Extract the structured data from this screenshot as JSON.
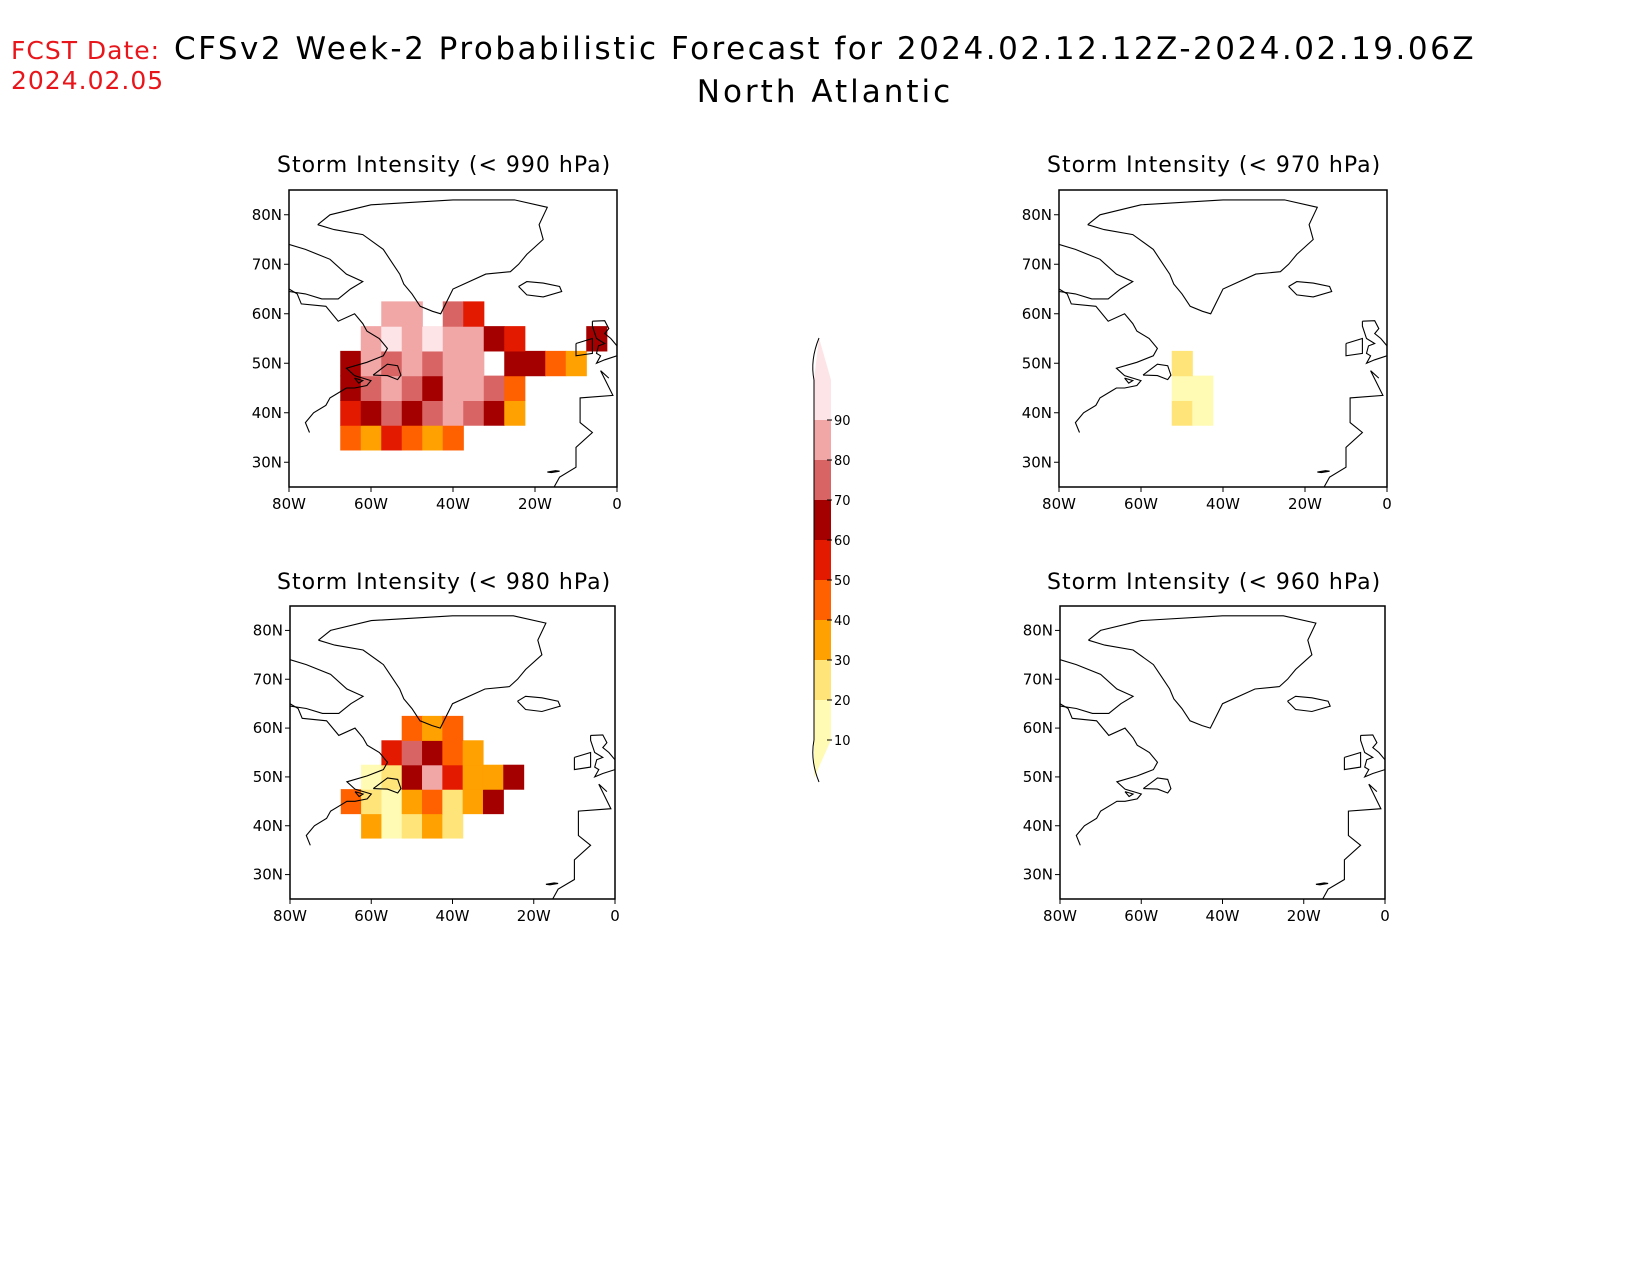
{
  "fcst_date": {
    "label": "FCST Date:",
    "value": "2024.02.05"
  },
  "title": {
    "line1": "CFSv2 Week-2 Probabilistic Forecast for 2024.02.12.12Z-2024.02.19.06Z",
    "line2": "North Atlantic"
  },
  "axes": {
    "lat_labels": [
      "80N",
      "70N",
      "60N",
      "50N",
      "40N",
      "30N"
    ],
    "lat_values": [
      80,
      70,
      60,
      50,
      40,
      30
    ],
    "lon_labels": [
      "80W",
      "60W",
      "40W",
      "20W",
      "0"
    ],
    "lon_values": [
      -80,
      -60,
      -40,
      -20,
      0
    ],
    "lat_range": [
      25,
      85
    ],
    "lon_range": [
      -80,
      0
    ]
  },
  "colorbar": {
    "levels": [
      "10",
      "20",
      "30",
      "40",
      "50",
      "60",
      "70",
      "80",
      "90"
    ],
    "colors": [
      "#fffab4",
      "#ffe47a",
      "#ffa100",
      "#ff6000",
      "#e41a00",
      "#a50000",
      "#d96464",
      "#f2a7a7",
      "#fde4e6"
    ]
  },
  "panels": [
    {
      "title": "Storm Intensity (< 990 hPa)",
      "cells": [
        {
          "lat": 35,
          "lon": -65,
          "level": 4
        },
        {
          "lat": 35,
          "lon": -60,
          "level": 3
        },
        {
          "lat": 35,
          "lon": -55,
          "level": 5
        },
        {
          "lat": 35,
          "lon": -50,
          "level": 4
        },
        {
          "lat": 35,
          "lon": -45,
          "level": 3
        },
        {
          "lat": 35,
          "lon": -40,
          "level": 4
        },
        {
          "lat": 40,
          "lon": -65,
          "level": 5
        },
        {
          "lat": 40,
          "lon": -60,
          "level": 6
        },
        {
          "lat": 40,
          "lon": -55,
          "level": 7
        },
        {
          "lat": 40,
          "lon": -50,
          "level": 6
        },
        {
          "lat": 40,
          "lon": -45,
          "level": 7
        },
        {
          "lat": 40,
          "lon": -40,
          "level": 8
        },
        {
          "lat": 40,
          "lon": -35,
          "level": 7
        },
        {
          "lat": 40,
          "lon": -30,
          "level": 6
        },
        {
          "lat": 40,
          "lon": -25,
          "level": 3
        },
        {
          "lat": 45,
          "lon": -65,
          "level": 6
        },
        {
          "lat": 45,
          "lon": -60,
          "level": 7
        },
        {
          "lat": 45,
          "lon": -55,
          "level": 8
        },
        {
          "lat": 45,
          "lon": -50,
          "level": 7
        },
        {
          "lat": 45,
          "lon": -45,
          "level": 6
        },
        {
          "lat": 45,
          "lon": -40,
          "level": 8
        },
        {
          "lat": 45,
          "lon": -35,
          "level": 8
        },
        {
          "lat": 45,
          "lon": -30,
          "level": 7
        },
        {
          "lat": 45,
          "lon": -25,
          "level": 4
        },
        {
          "lat": 50,
          "lon": -65,
          "level": 6
        },
        {
          "lat": 50,
          "lon": -60,
          "level": 8
        },
        {
          "lat": 50,
          "lon": -55,
          "level": 7
        },
        {
          "lat": 50,
          "lon": -50,
          "level": 8
        },
        {
          "lat": 50,
          "lon": -45,
          "level": 7
        },
        {
          "lat": 50,
          "lon": -40,
          "level": 8
        },
        {
          "lat": 50,
          "lon": -35,
          "level": 8
        },
        {
          "lat": 50,
          "lon": -25,
          "level": 6
        },
        {
          "lat": 50,
          "lon": -20,
          "level": 6
        },
        {
          "lat": 50,
          "lon": -15,
          "level": 4
        },
        {
          "lat": 50,
          "lon": -10,
          "level": 3
        },
        {
          "lat": 55,
          "lon": -60,
          "level": 8
        },
        {
          "lat": 55,
          "lon": -55,
          "level": 9
        },
        {
          "lat": 55,
          "lon": -50,
          "level": 8
        },
        {
          "lat": 55,
          "lon": -45,
          "level": 9
        },
        {
          "lat": 55,
          "lon": -40,
          "level": 8
        },
        {
          "lat": 55,
          "lon": -35,
          "level": 8
        },
        {
          "lat": 55,
          "lon": -30,
          "level": 6
        },
        {
          "lat": 55,
          "lon": -25,
          "level": 5
        },
        {
          "lat": 55,
          "lon": -5,
          "level": 6
        },
        {
          "lat": 60,
          "lon": -55,
          "level": 8
        },
        {
          "lat": 60,
          "lon": -50,
          "level": 8
        },
        {
          "lat": 60,
          "lon": -40,
          "level": 7
        },
        {
          "lat": 60,
          "lon": -35,
          "level": 5
        }
      ]
    },
    {
      "title": "Storm Intensity (< 970 hPa)",
      "cells": [
        {
          "lat": 40,
          "lon": -50,
          "level": 2
        },
        {
          "lat": 40,
          "lon": -45,
          "level": 1
        },
        {
          "lat": 45,
          "lon": -50,
          "level": 1
        },
        {
          "lat": 45,
          "lon": -45,
          "level": 1
        },
        {
          "lat": 50,
          "lon": -50,
          "level": 2
        }
      ]
    },
    {
      "title": "Storm Intensity (< 980 hPa)",
      "cells": [
        {
          "lat": 40,
          "lon": -60,
          "level": 3
        },
        {
          "lat": 40,
          "lon": -55,
          "level": 1
        },
        {
          "lat": 40,
          "lon": -50,
          "level": 2
        },
        {
          "lat": 40,
          "lon": -45,
          "level": 3
        },
        {
          "lat": 40,
          "lon": -40,
          "level": 2
        },
        {
          "lat": 45,
          "lon": -65,
          "level": 4
        },
        {
          "lat": 45,
          "lon": -60,
          "level": 2
        },
        {
          "lat": 45,
          "lon": -55,
          "level": 1
        },
        {
          "lat": 45,
          "lon": -50,
          "level": 3
        },
        {
          "lat": 45,
          "lon": -45,
          "level": 4
        },
        {
          "lat": 45,
          "lon": -40,
          "level": 2
        },
        {
          "lat": 45,
          "lon": -35,
          "level": 3
        },
        {
          "lat": 45,
          "lon": -30,
          "level": 6
        },
        {
          "lat": 50,
          "lon": -60,
          "level": 1
        },
        {
          "lat": 50,
          "lon": -55,
          "level": 2
        },
        {
          "lat": 50,
          "lon": -50,
          "level": 6
        },
        {
          "lat": 50,
          "lon": -45,
          "level": 8
        },
        {
          "lat": 50,
          "lon": -40,
          "level": 5
        },
        {
          "lat": 50,
          "lon": -35,
          "level": 3
        },
        {
          "lat": 50,
          "lon": -30,
          "level": 3
        },
        {
          "lat": 50,
          "lon": -25,
          "level": 6
        },
        {
          "lat": 55,
          "lon": -55,
          "level": 5
        },
        {
          "lat": 55,
          "lon": -50,
          "level": 7
        },
        {
          "lat": 55,
          "lon": -45,
          "level": 6
        },
        {
          "lat": 55,
          "lon": -40,
          "level": 4
        },
        {
          "lat": 55,
          "lon": -35,
          "level": 3
        },
        {
          "lat": 60,
          "lon": -50,
          "level": 4
        },
        {
          "lat": 60,
          "lon": -45,
          "level": 3
        },
        {
          "lat": 60,
          "lon": -40,
          "level": 4
        }
      ]
    },
    {
      "title": "Storm Intensity (< 960 hPa)",
      "cells": []
    }
  ]
}
